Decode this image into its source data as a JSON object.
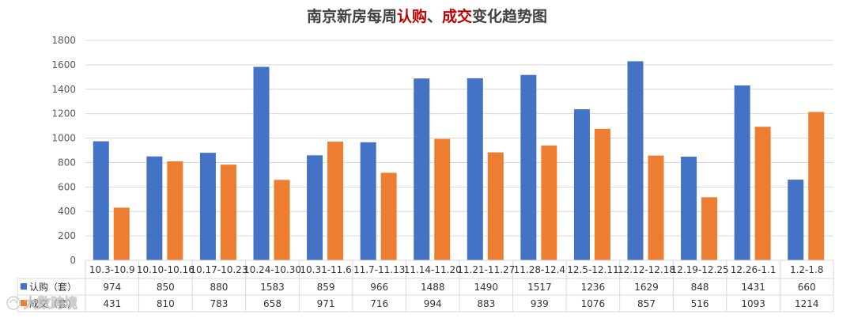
{
  "colors": {
    "subscription": "#4472C4",
    "transaction": "#ED7D31",
    "title_main": "#404040",
    "title_accent": "#C00000",
    "grid": "#D9D9D9"
  },
  "chart_data": {
    "type": "bar",
    "title_parts": [
      {
        "text": "南京新房每周",
        "accent": false
      },
      {
        "text": "认购",
        "accent": true
      },
      {
        "text": "、",
        "accent": false
      },
      {
        "text": "成交",
        "accent": true
      },
      {
        "text": "变化趋势图",
        "accent": false
      }
    ],
    "categories": [
      "10.3-10.9",
      "10.10-10.16",
      "10.17-10.23",
      "10.24-10.30",
      "10.31-11.6",
      "11.7-11.13",
      "11.14-11.20",
      "11.21-11.27",
      "11.28-12.4",
      "12.5-12.11",
      "12.12-12.18",
      "12.19-12.25",
      "12.26-1.1",
      "1.2-1.8"
    ],
    "series": [
      {
        "name": "认购（套）",
        "color": "#4472C4",
        "values": [
          974,
          850,
          880,
          1583,
          859,
          966,
          1488,
          1490,
          1517,
          1236,
          1629,
          848,
          1431,
          660
        ]
      },
      {
        "name": "成交（套）",
        "color": "#ED7D31",
        "values": [
          431,
          810,
          783,
          658,
          971,
          716,
          994,
          883,
          939,
          1076,
          857,
          516,
          1093,
          1214
        ]
      }
    ],
    "yticks": [
      0,
      200,
      400,
      600,
      800,
      1000,
      1200,
      1400,
      1600,
      1800
    ],
    "ylim": [
      0,
      1800
    ],
    "grid": true,
    "legend": "data-table"
  },
  "watermark": "大数跨境"
}
